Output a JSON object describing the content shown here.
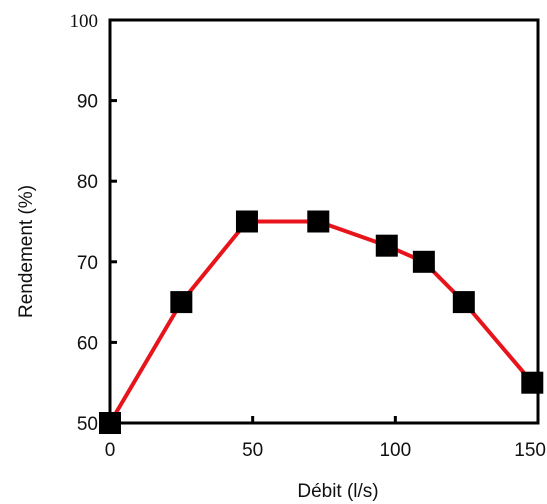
{
  "chart_data": {
    "type": "line",
    "title": "",
    "xlabel": "Débit  (l/s)",
    "ylabel": "Rendement (%)",
    "xlim": [
      0,
      150
    ],
    "ylim": [
      50,
      100
    ],
    "x_ticks": [
      0,
      50,
      100,
      150
    ],
    "y_ticks": [
      50,
      60,
      70,
      80,
      90,
      100
    ],
    "grid": false,
    "legend": "none",
    "series": [
      {
        "x": [
          0,
          25,
          48,
          73,
          97,
          110,
          124,
          148
        ],
        "y": [
          50,
          65,
          75,
          75,
          72,
          70,
          65,
          55
        ],
        "line_color": "#e8141b",
        "marker_color": "#000000",
        "marker": "square"
      }
    ]
  }
}
